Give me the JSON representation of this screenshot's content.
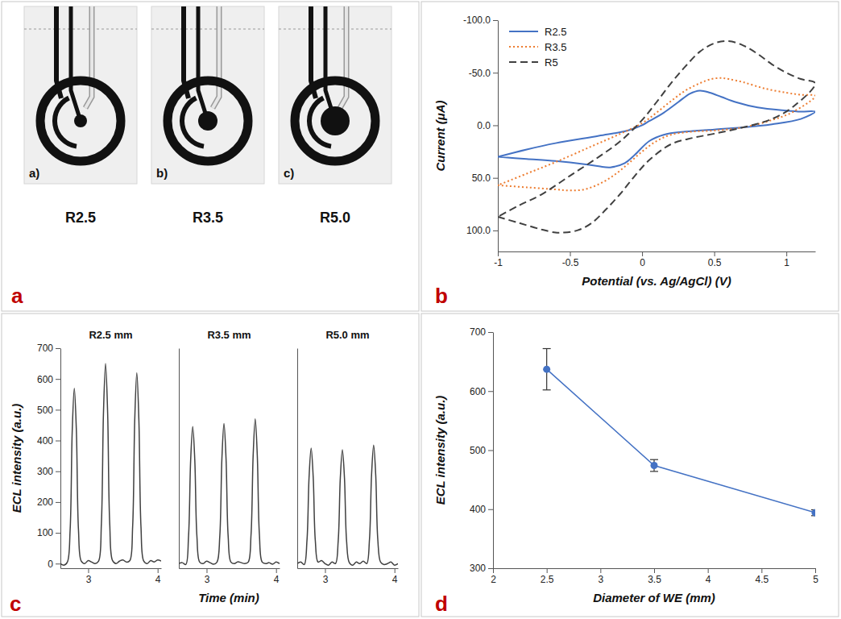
{
  "figure_a": {
    "panel_label": "a",
    "photos": [
      {
        "letter": "a)",
        "label": "R2.5"
      },
      {
        "letter": "b)",
        "label": "R3.5"
      },
      {
        "letter": "c)",
        "label": "R5.0"
      }
    ]
  },
  "chart_data": [
    {
      "type": "line",
      "panel_label": "b",
      "xlabel": "Potential (vs. Ag/AgCl) (V)",
      "ylabel": "Current (μA)",
      "xlim": [
        -1,
        1.2
      ],
      "xticks": [
        -1,
        -0.5,
        0,
        0.5,
        1
      ],
      "ylim": [
        120,
        -100
      ],
      "yticks": [
        {
          "value": -100,
          "label": "-100.0"
        },
        {
          "value": -50,
          "label": "-50.0"
        },
        {
          "value": 0,
          "label": "0.0"
        },
        {
          "value": 50,
          "label": "50.0"
        },
        {
          "value": 100,
          "label": "100.0"
        }
      ],
      "legend": "upper left",
      "series": [
        {
          "name": "R2.5",
          "color": "#4472c4",
          "line_style": "solid",
          "x": [
            -1,
            -0.8,
            -0.6,
            -0.4,
            -0.3,
            -0.22,
            -0.12,
            -0.05,
            0.05,
            0.15,
            0.3,
            0.5,
            0.7,
            0.9,
            1.1,
            1.2,
            1.1,
            1.0,
            0.8,
            0.65,
            0.55,
            0.47,
            0.4,
            0.33,
            0.25,
            0.15,
            0.05,
            0,
            -0.1,
            -0.3,
            -0.6,
            -0.8,
            -1
          ],
          "values": [
            30,
            32,
            34,
            37,
            39,
            40,
            36,
            28,
            15,
            9,
            6,
            4,
            2,
            -1,
            -6,
            -13,
            -13,
            -14,
            -17,
            -22,
            -27,
            -31,
            -33,
            -30,
            -22,
            -12,
            -4,
            0,
            5,
            10,
            17,
            23,
            30
          ]
        },
        {
          "name": "R3.5",
          "color": "#ed7d31",
          "line_style": "dotted",
          "x": [
            -1,
            -0.8,
            -0.6,
            -0.5,
            -0.4,
            -0.3,
            -0.2,
            -0.1,
            0,
            0.1,
            0.2,
            0.35,
            0.5,
            0.7,
            0.9,
            1.05,
            1.2,
            1.1,
            1.0,
            0.85,
            0.7,
            0.6,
            0.55,
            0.48,
            0.4,
            0.3,
            0.2,
            0.1,
            0,
            -0.15,
            -0.35,
            -0.6,
            -0.8,
            -1
          ],
          "values": [
            57,
            59,
            61,
            62,
            61,
            56,
            48,
            37,
            25,
            15,
            9,
            6,
            5,
            2,
            -5,
            -13,
            -28,
            -29,
            -31,
            -35,
            -41,
            -44,
            -45,
            -44,
            -40,
            -33,
            -23,
            -12,
            -2,
            8,
            20,
            35,
            46,
            57
          ]
        },
        {
          "name": "R5",
          "color": "#404040",
          "line_style": "dashed",
          "x": [
            -1,
            -0.85,
            -0.7,
            -0.6,
            -0.55,
            -0.45,
            -0.35,
            -0.25,
            -0.15,
            -0.05,
            0.05,
            0.2,
            0.35,
            0.5,
            0.7,
            0.9,
            1.05,
            1.2,
            1.1,
            1.0,
            0.9,
            0.8,
            0.7,
            0.6,
            0.5,
            0.4,
            0.3,
            0.2,
            0.1,
            0,
            -0.15,
            -0.3,
            -0.5,
            -0.7,
            -0.85,
            -1
          ],
          "values": [
            87,
            93,
            99,
            102,
            102,
            100,
            93,
            80,
            65,
            48,
            33,
            18,
            12,
            8,
            2,
            -6,
            -18,
            -40,
            -44,
            -50,
            -58,
            -68,
            -76,
            -80,
            -78,
            -70,
            -56,
            -40,
            -22,
            -5,
            15,
            30,
            48,
            66,
            76,
            87
          ]
        }
      ]
    },
    {
      "type": "line",
      "panel_label": "c",
      "title": "R2.5 mm",
      "ylabel": "ECL intensity (a.u.)",
      "color": "#404040",
      "x": [
        2.6,
        2.65,
        2.7,
        2.74,
        2.77,
        2.8,
        2.83,
        2.86,
        2.9,
        2.95,
        3.0,
        3.05,
        3.1,
        3.15,
        3.19,
        3.22,
        3.25,
        3.28,
        3.31,
        3.35,
        3.4,
        3.45,
        3.5,
        3.55,
        3.6,
        3.64,
        3.67,
        3.7,
        3.73,
        3.76,
        3.8,
        3.85,
        3.9,
        3.95,
        4.0,
        4.05
      ],
      "values": [
        0,
        -5,
        5,
        110,
        430,
        570,
        430,
        110,
        8,
        0,
        10,
        5,
        0,
        8,
        130,
        490,
        650,
        490,
        130,
        10,
        0,
        8,
        12,
        5,
        10,
        120,
        465,
        620,
        465,
        120,
        8,
        0,
        10,
        5,
        12,
        8
      ],
      "xlim": [
        2.6,
        4.05
      ],
      "xticks": [
        3,
        4
      ],
      "ylim": [
        -15,
        700
      ],
      "yticks": [
        0,
        100,
        200,
        300,
        400,
        500,
        600,
        700
      ]
    },
    {
      "type": "line",
      "title": "R3.5 mm",
      "xlabel": "Time (min)",
      "color": "#404040",
      "tick_labels": "x",
      "x": [
        2.6,
        2.65,
        2.7,
        2.74,
        2.77,
        2.8,
        2.83,
        2.86,
        2.9,
        2.95,
        3.0,
        3.05,
        3.1,
        3.15,
        3.19,
        3.22,
        3.25,
        3.28,
        3.31,
        3.35,
        3.4,
        3.45,
        3.5,
        3.55,
        3.6,
        3.64,
        3.67,
        3.7,
        3.73,
        3.76,
        3.8,
        3.85,
        3.9,
        3.95,
        4.0,
        4.05
      ],
      "values": [
        0,
        3,
        -3,
        90,
        335,
        445,
        335,
        90,
        5,
        0,
        8,
        3,
        -2,
        5,
        90,
        340,
        455,
        340,
        90,
        5,
        0,
        6,
        3,
        0,
        5,
        95,
        350,
        470,
        350,
        95,
        5,
        0,
        3,
        -2,
        5,
        0
      ],
      "xlim": [
        2.6,
        4.05
      ],
      "xticks": [
        3,
        4
      ],
      "ylim": [
        -15,
        700
      ]
    },
    {
      "type": "line",
      "title": "R5.0 mm",
      "color": "#404040",
      "tick_labels": "x",
      "x": [
        2.6,
        2.65,
        2.7,
        2.74,
        2.77,
        2.8,
        2.83,
        2.86,
        2.9,
        2.95,
        3.0,
        3.05,
        3.1,
        3.15,
        3.19,
        3.22,
        3.25,
        3.28,
        3.31,
        3.35,
        3.4,
        3.45,
        3.5,
        3.55,
        3.6,
        3.64,
        3.67,
        3.7,
        3.73,
        3.76,
        3.8,
        3.85,
        3.9,
        3.95,
        4.0,
        4.05
      ],
      "values": [
        0,
        5,
        -3,
        75,
        280,
        375,
        280,
        75,
        5,
        10,
        0,
        -5,
        5,
        0,
        75,
        278,
        370,
        278,
        75,
        3,
        -5,
        5,
        0,
        8,
        0,
        78,
        288,
        385,
        288,
        78,
        5,
        -3,
        0,
        5,
        -5,
        0
      ],
      "xlim": [
        2.6,
        4.05
      ],
      "xticks": [
        3,
        4
      ],
      "ylim": [
        -15,
        700
      ]
    },
    {
      "type": "line",
      "panel_label": "d",
      "xlabel": "Diameter of WE (mm)",
      "ylabel": "ECL intensity (a.u.)",
      "x": [
        2.5,
        3.5,
        5
      ],
      "values": [
        637,
        474,
        394
      ],
      "errors": [
        35,
        10,
        5
      ],
      "color": "#4472c4",
      "marker": "circle",
      "xlim": [
        2,
        5
      ],
      "xticks": [
        2,
        2.5,
        3,
        3.5,
        4,
        4.5,
        5
      ],
      "ylim": [
        300,
        700
      ],
      "yticks": [
        300,
        400,
        500,
        600,
        700
      ]
    }
  ]
}
